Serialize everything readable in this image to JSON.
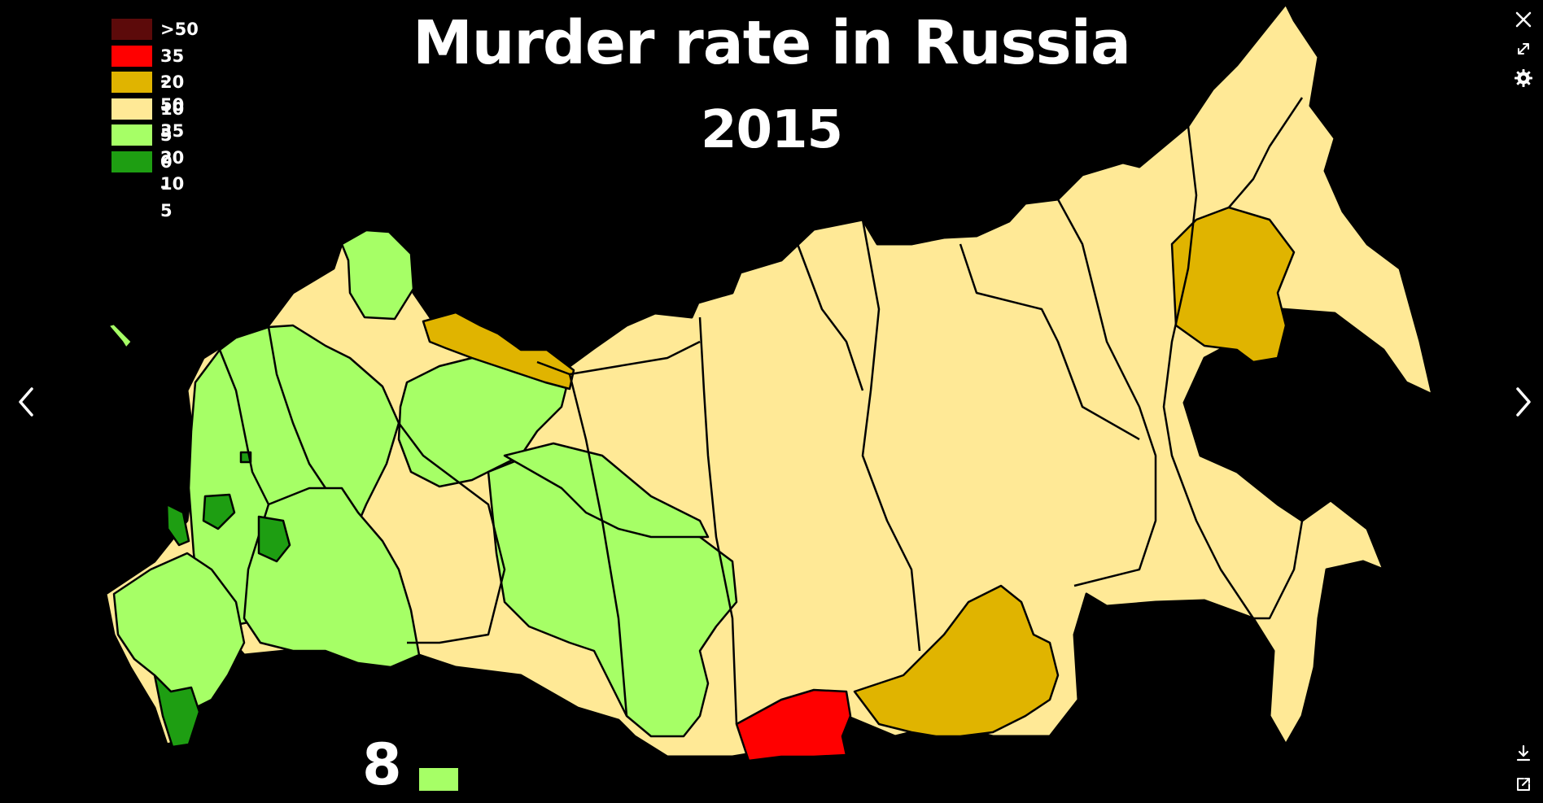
{
  "map": {
    "title": "Murder rate in Russia",
    "subtitle": "2015",
    "legend": [
      {
        "label": ">50",
        "color": "#5c0a0a"
      },
      {
        "label": "35 - 50",
        "color": "#ff0000"
      },
      {
        "label": "20 - 35",
        "color": "#e0b400"
      },
      {
        "label": "10 - 20",
        "color": "#ffe996"
      },
      {
        "label": "5 - 10",
        "color": "#a6ff66"
      },
      {
        "label": "0 - 5",
        "color": "#1e9e12"
      }
    ],
    "bottom_indicator": {
      "value": "8",
      "color": "#a6ff66"
    }
  },
  "viewer": {
    "controls": {
      "close": "close-icon",
      "expand": "expand-icon",
      "settings": "gear-icon",
      "prev": "chevron-left-icon",
      "next": "chevron-right-icon",
      "download": "download-icon",
      "share": "share-icon"
    }
  }
}
